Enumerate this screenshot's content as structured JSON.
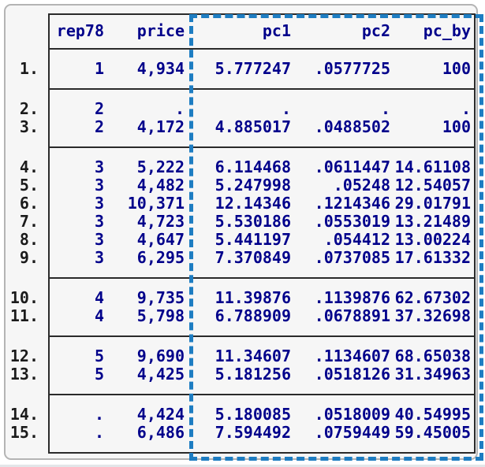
{
  "app": {
    "description": "Stata results window data listing with pc1, pc2 and pc_by columns highlighted by a dashed rectangle"
  },
  "colors": {
    "data_text": "#00008b",
    "row_label_text": "#1b1b1b",
    "table_lines": "#2a2a2a",
    "highlight_dash": "#1e7dc2",
    "panel_background": "#f6f6f6",
    "panel_border": "#b4b4b4"
  },
  "highlight": {
    "shape": "dashed-rectangle",
    "columns_highlighted": [
      "pc1",
      "pc2",
      "pc_by"
    ]
  },
  "table": {
    "columns": [
      "rep78",
      "price",
      "pc1",
      "pc2",
      "pc_by"
    ],
    "groups": [
      {
        "rows": [
          {
            "n": "1.",
            "rep78": "1",
            "price": "4,934",
            "pc1": "5.777247",
            "pc2": ".0577725",
            "pc_by": "100"
          }
        ]
      },
      {
        "rows": [
          {
            "n": "2.",
            "rep78": "2",
            "price": ".",
            "pc1": ".",
            "pc2": ".",
            "pc_by": "."
          },
          {
            "n": "3.",
            "rep78": "2",
            "price": "4,172",
            "pc1": "4.885017",
            "pc2": ".0488502",
            "pc_by": "100"
          }
        ]
      },
      {
        "rows": [
          {
            "n": "4.",
            "rep78": "3",
            "price": "5,222",
            "pc1": "6.114468",
            "pc2": ".0611447",
            "pc_by": "14.61108"
          },
          {
            "n": "5.",
            "rep78": "3",
            "price": "4,482",
            "pc1": "5.247998",
            "pc2": ".05248",
            "pc_by": "12.54057"
          },
          {
            "n": "6.",
            "rep78": "3",
            "price": "10,371",
            "pc1": "12.14346",
            "pc2": ".1214346",
            "pc_by": "29.01791"
          },
          {
            "n": "7.",
            "rep78": "3",
            "price": "4,723",
            "pc1": "5.530186",
            "pc2": ".0553019",
            "pc_by": "13.21489"
          },
          {
            "n": "8.",
            "rep78": "3",
            "price": "4,647",
            "pc1": "5.441197",
            "pc2": ".054412",
            "pc_by": "13.00224"
          },
          {
            "n": "9.",
            "rep78": "3",
            "price": "6,295",
            "pc1": "7.370849",
            "pc2": ".0737085",
            "pc_by": "17.61332"
          }
        ]
      },
      {
        "rows": [
          {
            "n": "10.",
            "rep78": "4",
            "price": "9,735",
            "pc1": "11.39876",
            "pc2": ".1139876",
            "pc_by": "62.67302"
          },
          {
            "n": "11.",
            "rep78": "4",
            "price": "5,798",
            "pc1": "6.788909",
            "pc2": ".0678891",
            "pc_by": "37.32698"
          }
        ]
      },
      {
        "rows": [
          {
            "n": "12.",
            "rep78": "5",
            "price": "9,690",
            "pc1": "11.34607",
            "pc2": ".1134607",
            "pc_by": "68.65038"
          },
          {
            "n": "13.",
            "rep78": "5",
            "price": "4,425",
            "pc1": "5.181256",
            "pc2": ".0518126",
            "pc_by": "31.34963"
          }
        ]
      },
      {
        "rows": [
          {
            "n": "14.",
            "rep78": ".",
            "price": "4,424",
            "pc1": "5.180085",
            "pc2": ".0518009",
            "pc_by": "40.54995"
          },
          {
            "n": "15.",
            "rep78": ".",
            "price": "6,486",
            "pc1": "7.594492",
            "pc2": ".0759449",
            "pc_by": "59.45005"
          }
        ]
      }
    ]
  }
}
